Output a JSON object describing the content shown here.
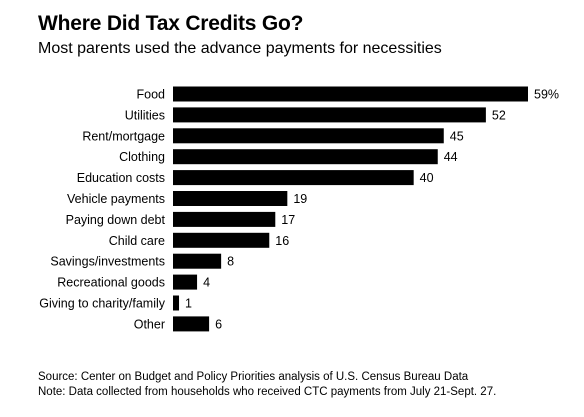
{
  "title": "Where Did Tax Credits Go?",
  "subtitle": "Most parents used the advance payments for necessities",
  "source": "Source: Center on Budget and Policy Priorities analysis of U.S. Census Bureau Data",
  "note": "Note: Data collected from households who received CTC payments from July 21-Sept. 27.",
  "chart_data": {
    "type": "bar",
    "orientation": "horizontal",
    "title": "Where Did Tax Credits Go?",
    "subtitle": "Most parents used the advance payments for necessities",
    "categories": [
      "Food",
      "Utilities",
      "Rent/mortgage",
      "Clothing",
      "Education costs",
      "Vehicle payments",
      "Paying down debt",
      "Child care",
      "Savings/investments",
      "Recreational goods",
      "Giving to charity/family",
      "Other"
    ],
    "values": [
      59,
      52,
      45,
      44,
      40,
      19,
      17,
      16,
      8,
      4,
      1,
      6
    ],
    "value_labels": [
      "59%",
      "52",
      "45",
      "44",
      "40",
      "19",
      "17",
      "16",
      "8",
      "4",
      "1",
      "6"
    ],
    "unit": "%",
    "xlim": [
      0,
      59
    ],
    "grid": false,
    "legend": "none",
    "bar_color": "#000000"
  }
}
